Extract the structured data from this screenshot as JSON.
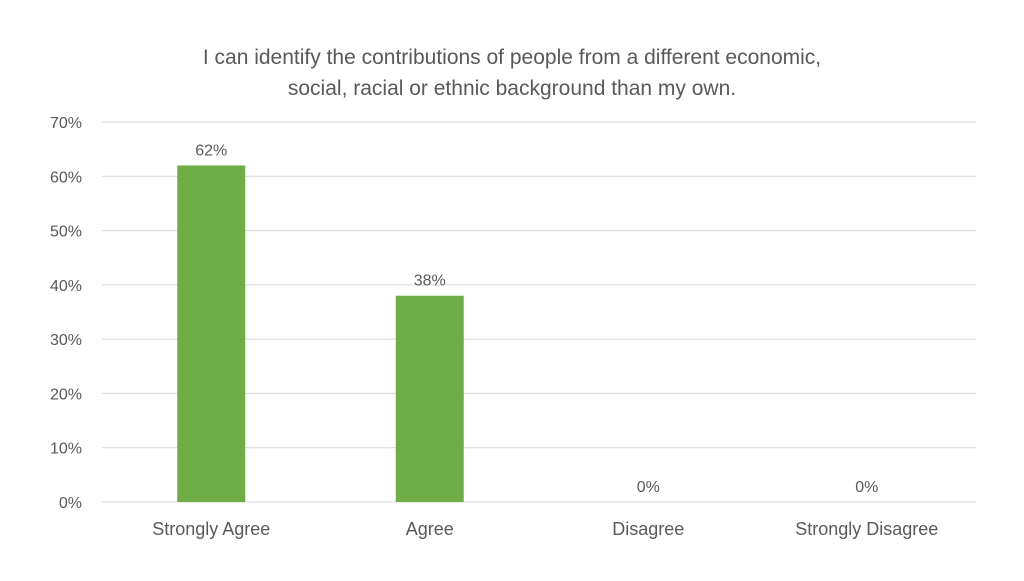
{
  "chart_data": {
    "type": "bar",
    "title_lines": [
      "I can identify the contributions of people from a different economic,",
      "social, racial or ethnic background than my own."
    ],
    "categories": [
      "Strongly Agree",
      "Agree",
      "Disagree",
      "Strongly Disagree"
    ],
    "values": [
      62,
      38,
      0,
      0
    ],
    "data_labels": [
      "62%",
      "38%",
      "0%",
      "0%"
    ],
    "y_ticks": [
      0,
      10,
      20,
      30,
      40,
      50,
      60,
      70
    ],
    "y_tick_labels": [
      "0%",
      "10%",
      "20%",
      "30%",
      "40%",
      "50%",
      "60%",
      "70%"
    ],
    "ylim": [
      0,
      70
    ],
    "grid": true,
    "legend": "none",
    "colors": {
      "bar": "#70AD47",
      "grid": "#D9D9D9",
      "text": "#595959"
    }
  }
}
